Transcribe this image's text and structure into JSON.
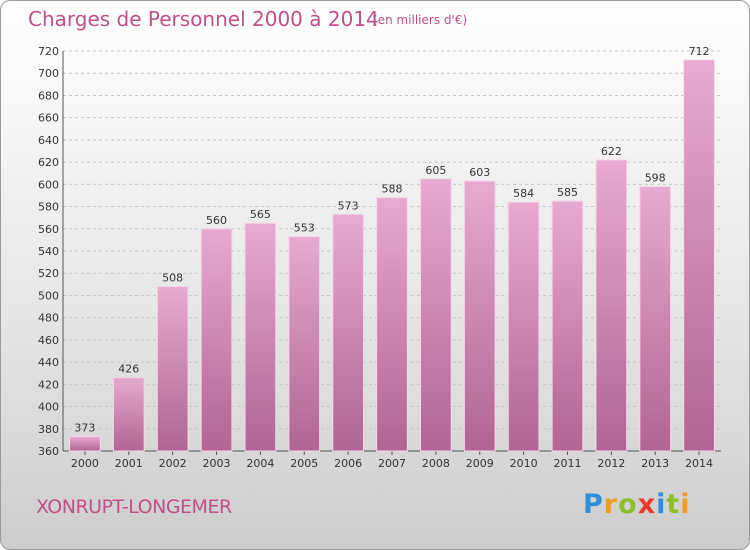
{
  "title": "Charges de Personnel 2000 à 2014",
  "subtitle": "(en milliers d'€)",
  "commune": "XONRUPT-LONGEMER",
  "logo": {
    "letters": [
      "P",
      "r",
      "o",
      "x",
      "i",
      "t",
      "i"
    ],
    "colors": [
      "#2f8fd8",
      "#f29b1f",
      "#8cbf2a",
      "#e73a2c",
      "#2f8fd8",
      "#8cbf2a",
      "#f29b1f"
    ]
  },
  "colors": {
    "bar_top": "#e7aad0",
    "bar_bottom": "#b06592",
    "text_accent": "#c0508a"
  },
  "chart_data": {
    "type": "bar",
    "categories": [
      "2000",
      "2001",
      "2002",
      "2003",
      "2004",
      "2005",
      "2006",
      "2007",
      "2008",
      "2009",
      "2010",
      "2011",
      "2012",
      "2013",
      "2014"
    ],
    "values": [
      373,
      426,
      508,
      560,
      565,
      553,
      573,
      588,
      605,
      603,
      584,
      585,
      622,
      598,
      712
    ],
    "ylim": [
      360,
      720
    ],
    "yticks": [
      360,
      380,
      400,
      420,
      440,
      460,
      480,
      500,
      520,
      540,
      560,
      580,
      600,
      620,
      640,
      660,
      680,
      700,
      720
    ],
    "grid": true
  }
}
